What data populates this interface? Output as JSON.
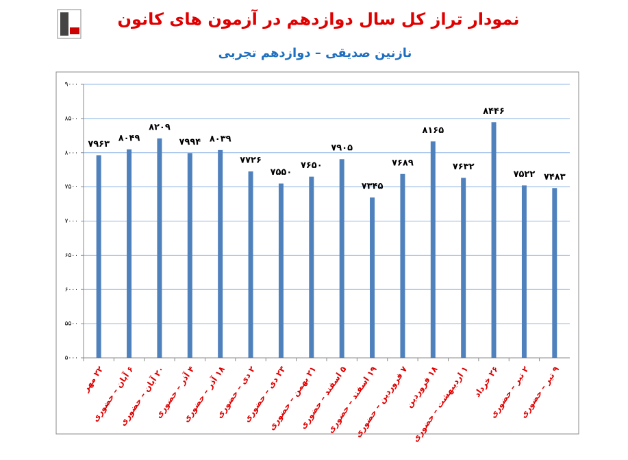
{
  "chart_data": {
    "type": "bar",
    "title": "نمودار تراز کل سال دوازدهم در آزمون های کانون",
    "subtitle": "نازنین صدیقی – دوازدهم تجربی",
    "categories": [
      "۲۲ مهر",
      "۶ آبان – حضوری",
      "۲۰ آبان – حضوری",
      "۴ آذر – حضوری",
      "۱۸ آذر – حضوری",
      "۲ دی – حضوری",
      "۲۳ دی – حضوری",
      "۲۱ بهمن – حضوری",
      "۵ اسفند – حضوری",
      "۱۹ اسفند – حضوری",
      "۷ فروردین – حضوری",
      "۱۸ فروردین",
      "۱ اردیبهشت – حضوری",
      "۲۶ خرداد",
      "۲ تیر – حضوری",
      "۹ تیر – حضوری"
    ],
    "values": [
      7963,
      8049,
      8209,
      7994,
      8039,
      7726,
      7550,
      7650,
      7905,
      7345,
      7689,
      8165,
      7632,
      8446,
      7522,
      7483
    ],
    "value_labels": [
      "۷۹۶۳",
      "۸۰۴۹",
      "۸۲۰۹",
      "۷۹۹۴",
      "۸۰۳۹",
      "۷۷۲۶",
      "۷۵۵۰",
      "۷۶۵۰",
      "۷۹۰۵",
      "۷۳۴۵",
      "۷۶۸۹",
      "۸۱۶۵",
      "۷۶۳۲",
      "۸۴۴۶",
      "۷۵۲۲",
      "۷۴۸۳"
    ],
    "color": "#4f81bd",
    "ylim": [
      5000,
      9000
    ],
    "yticks": [
      {
        "value": 5000,
        "label": "۵۰۰۰"
      },
      {
        "value": 5500,
        "label": "۵۵۰۰"
      },
      {
        "value": 6000,
        "label": "۶۰۰۰"
      },
      {
        "value": 6500,
        "label": "۶۵۰۰"
      },
      {
        "value": 7000,
        "label": "۷۰۰۰"
      },
      {
        "value": 7500,
        "label": "۷۵۰۰"
      },
      {
        "value": 8000,
        "label": "۸۰۰۰"
      },
      {
        "value": 8500,
        "label": "۸۵۰۰"
      },
      {
        "value": 9000,
        "label": "۹۰۰۰"
      }
    ],
    "grid": true
  }
}
